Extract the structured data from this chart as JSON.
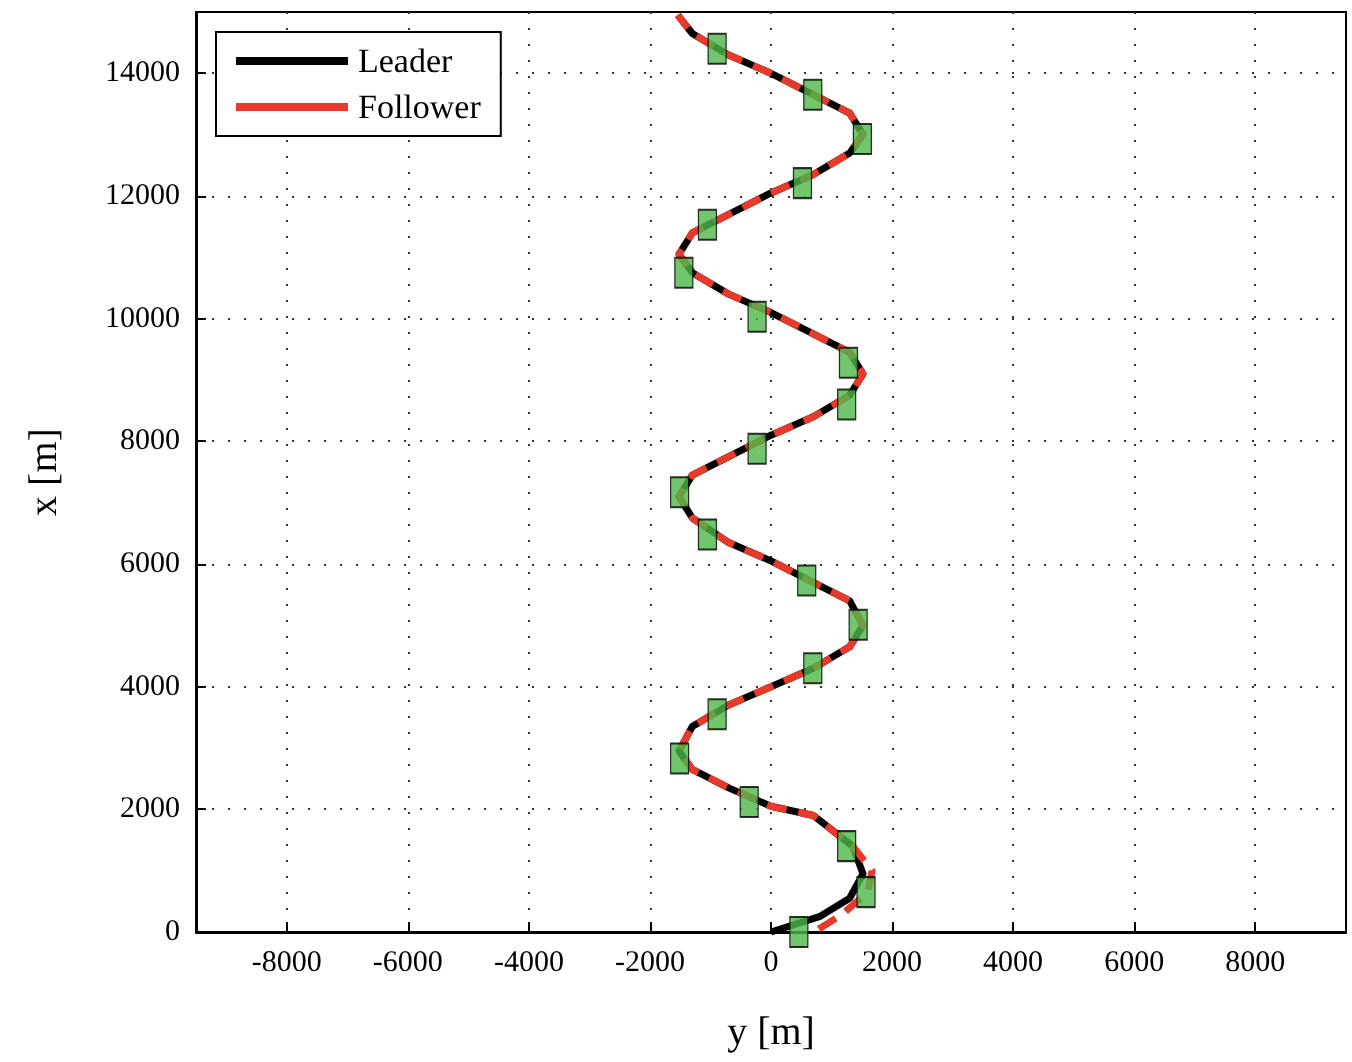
{
  "chart_data": {
    "type": "line",
    "xlabel": "y [m]",
    "ylabel": "x [m]",
    "xlim": [
      -9500,
      9500
    ],
    "xticks": [
      -8000,
      -6000,
      -4000,
      -2000,
      0,
      2000,
      4000,
      6000,
      8000
    ],
    "ylim": [
      0,
      15000
    ],
    "yticks": [
      0,
      2000,
      4000,
      6000,
      8000,
      10000,
      12000,
      14000
    ],
    "grid": true,
    "legend": "top left",
    "marker": "none",
    "series": [
      {
        "name": "Leader",
        "color": "#000000",
        "line_style": "solid",
        "x": [
          0,
          800,
          1300,
          1520,
          1350,
          700,
          0,
          -700,
          -1300,
          -1520,
          -1300,
          -700,
          0,
          700,
          1300,
          1520,
          1300,
          600,
          0,
          -700,
          -1300,
          -1520,
          -1300,
          -600,
          0,
          700,
          1300,
          1520,
          1300,
          600,
          0,
          -700,
          -1300,
          -1520,
          -1300,
          -600,
          0,
          700,
          1300,
          1520,
          1300,
          600,
          0,
          -700,
          -1300,
          -1540
        ],
        "values": [
          0,
          250,
          550,
          950,
          1400,
          1900,
          2050,
          2350,
          2650,
          2950,
          3350,
          3700,
          4000,
          4300,
          4650,
          5000,
          5400,
          5750,
          6050,
          6350,
          6750,
          7100,
          7450,
          7800,
          8100,
          8400,
          8750,
          9100,
          9450,
          9800,
          10100,
          10400,
          10750,
          11050,
          11400,
          11750,
          12050,
          12350,
          12700,
          13000,
          13350,
          13700,
          14000,
          14300,
          14650,
          14950
        ]
      },
      {
        "name": "Follower",
        "color": "#e8392a",
        "line_style": "dashed",
        "x": [
          790,
          1180,
          1600,
          1670,
          1350,
          700,
          0,
          -700,
          -1300,
          -1520,
          -1300,
          -700,
          0,
          700,
          1300,
          1520,
          1300,
          600,
          0,
          -700,
          -1300,
          -1520,
          -1300,
          -600,
          0,
          700,
          1300,
          1520,
          1300,
          600,
          0,
          -700,
          -1300,
          -1520,
          -1300,
          -600,
          0,
          700,
          1300,
          1520,
          1300,
          600,
          0,
          -700,
          -1300,
          -1540
        ],
        "values": [
          50,
          290,
          650,
          1000,
          1400,
          1900,
          2050,
          2350,
          2650,
          2950,
          3350,
          3700,
          4000,
          4300,
          4650,
          5000,
          5400,
          5750,
          6050,
          6350,
          6750,
          7100,
          7450,
          7800,
          8100,
          8400,
          8750,
          9100,
          9450,
          9800,
          10100,
          10400,
          10750,
          11050,
          11400,
          11750,
          12050,
          12350,
          12700,
          13000,
          13350,
          13700,
          14000,
          14300,
          14650,
          14950
        ]
      },
      {
        "type": "scatter",
        "color": "#4db848",
        "marker": "square",
        "x": [
          460,
          1570,
          1250,
          -360,
          -1510,
          -890,
          690,
          1440,
          590,
          -1050,
          -1510,
          -230,
          1250,
          1280,
          -230,
          -1440,
          -1050,
          520,
          1510,
          690,
          -890
        ],
        "values": [
          0,
          650,
          1400,
          2120,
          2830,
          3550,
          4300,
          5010,
          5730,
          6480,
          7170,
          7880,
          8600,
          9280,
          10030,
          10750,
          11530,
          12210,
          12930,
          13650,
          14400
        ]
      }
    ]
  }
}
